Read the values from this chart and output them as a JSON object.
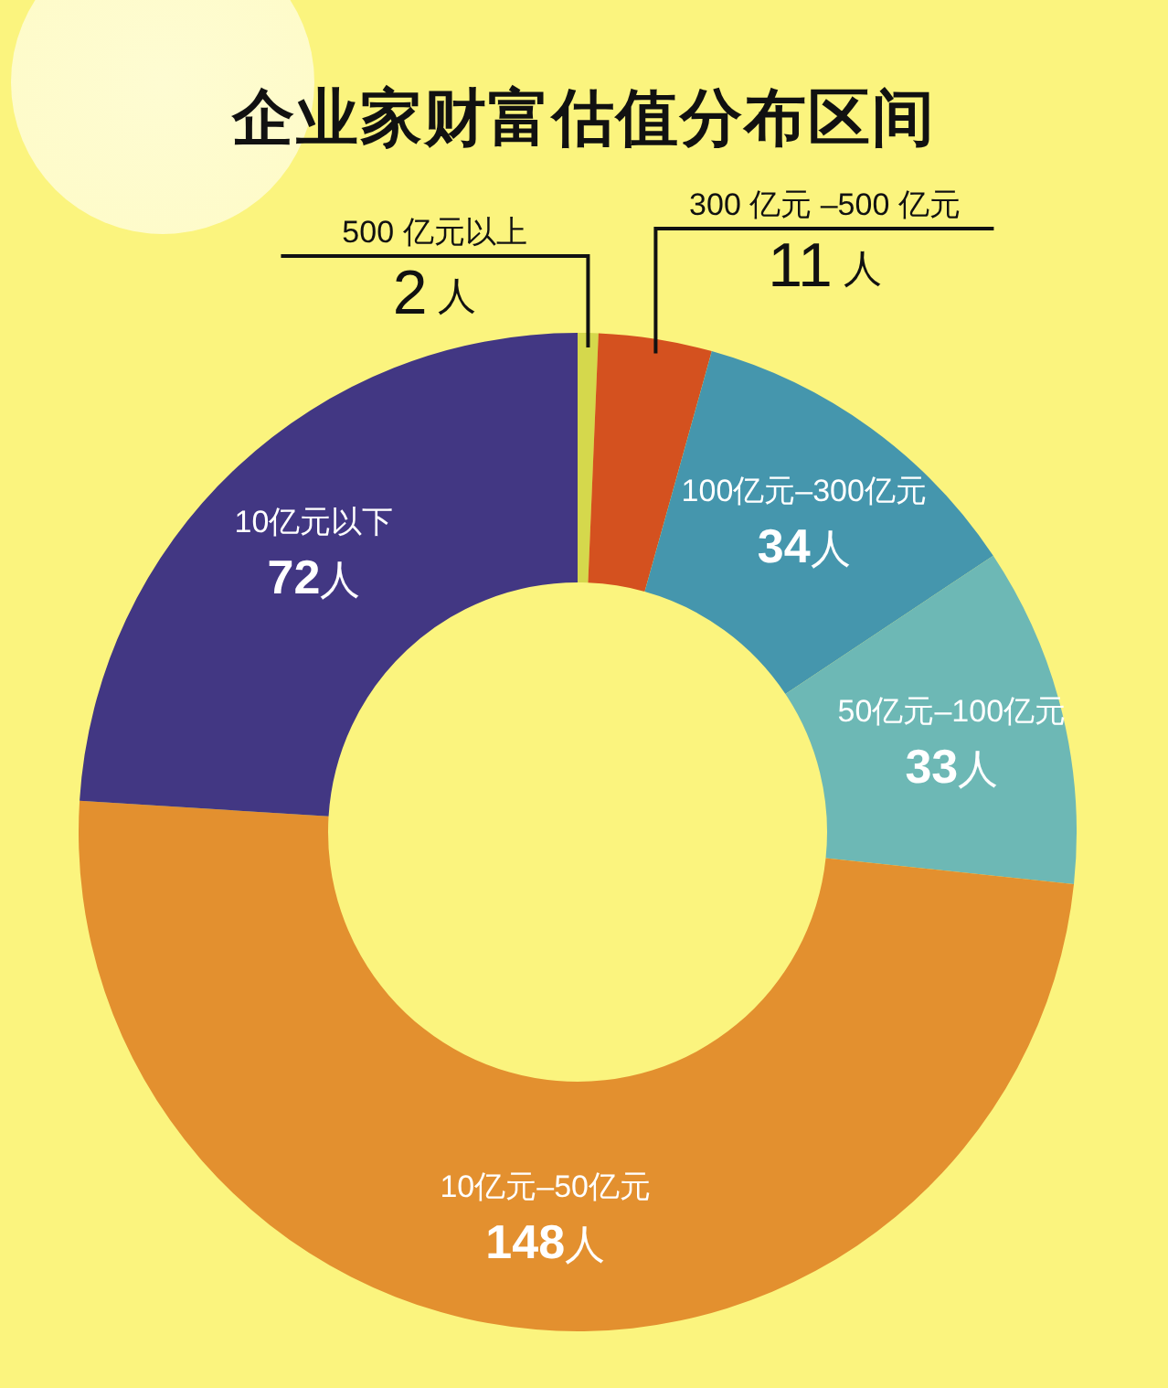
{
  "chart_data": {
    "type": "donut",
    "title": "企业家财富估值分布区间",
    "categories": [
      "500 亿元以上",
      "300 亿元 –500 亿元",
      "100亿元–300亿元",
      "50亿元–100亿元",
      "10亿元–50亿元",
      "10亿元以下"
    ],
    "values": [
      2,
      11,
      34,
      33,
      148,
      72
    ],
    "colors": [
      "#d5d84c",
      "#d4511f",
      "#4596ad",
      "#6db8b5",
      "#e3902f",
      "#423783"
    ],
    "value_labels": [
      "2 人",
      "11 人",
      "34人",
      "33人",
      "148人",
      "72人"
    ]
  }
}
